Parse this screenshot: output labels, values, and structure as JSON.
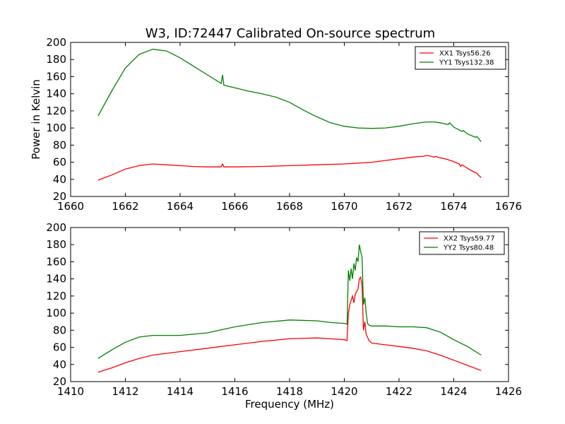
{
  "figure": {
    "title": "W3, ID:72447 Calibrated On-source spectrum",
    "ylabel": "Power in Kelvin",
    "xlabel": "Frequency (MHz)"
  },
  "chart_data": [
    {
      "type": "line",
      "title": "W3, ID:72447 Calibrated On-source spectrum",
      "xlabel": "",
      "ylabel": "Power in Kelvin",
      "xlim": [
        1660,
        1676
      ],
      "ylim": [
        20,
        200
      ],
      "xticks": [
        1660,
        1662,
        1664,
        1666,
        1668,
        1670,
        1672,
        1674,
        1676
      ],
      "yticks": [
        20,
        40,
        60,
        80,
        100,
        120,
        140,
        160,
        180,
        200
      ],
      "grid": false,
      "legend_position": "top-right",
      "series": [
        {
          "name": "XX1 Tsys56.26",
          "color": "#ff0000",
          "x": [
            1661.0,
            1661.5,
            1662.0,
            1662.5,
            1663.0,
            1663.5,
            1664.0,
            1664.5,
            1665.0,
            1665.5,
            1665.55,
            1665.6,
            1666.0,
            1667.0,
            1668.0,
            1669.0,
            1670.0,
            1671.0,
            1671.5,
            1672.0,
            1672.5,
            1672.9,
            1673.0,
            1673.3,
            1673.35,
            1673.4,
            1673.8,
            1673.85,
            1673.9,
            1674.2,
            1674.25,
            1674.3,
            1674.6,
            1674.85,
            1674.9,
            1675.0
          ],
          "y": [
            39,
            45,
            52,
            56,
            58,
            57,
            56,
            55,
            54.5,
            54.5,
            58,
            54.5,
            54.5,
            55,
            56,
            57,
            58,
            60,
            62,
            64,
            66,
            67,
            68,
            66,
            67,
            66,
            63,
            62,
            62,
            58,
            55,
            57,
            51,
            47,
            45,
            42
          ]
        },
        {
          "name": "YY1 Tsys132.38",
          "color": "#008000",
          "x": [
            1661.0,
            1661.5,
            1662.0,
            1662.5,
            1663.0,
            1663.5,
            1664.0,
            1664.5,
            1665.0,
            1665.5,
            1665.55,
            1665.6,
            1666.0,
            1666.5,
            1667.0,
            1667.5,
            1668.0,
            1668.5,
            1669.0,
            1669.5,
            1670.0,
            1670.5,
            1671.0,
            1671.5,
            1672.0,
            1672.5,
            1673.0,
            1673.3,
            1673.5,
            1673.8,
            1673.85,
            1674.0,
            1674.3,
            1674.35,
            1674.5,
            1674.8,
            1674.85,
            1675.0
          ],
          "y": [
            114,
            143,
            170,
            186,
            192,
            190,
            182,
            172,
            162,
            152,
            162,
            150,
            147,
            143,
            140,
            136,
            130,
            121,
            113,
            106,
            102,
            100,
            99.5,
            100,
            102,
            105,
            107,
            107,
            106,
            104,
            106,
            101,
            96,
            97,
            93,
            89,
            90,
            84
          ]
        }
      ]
    },
    {
      "type": "line",
      "title": "",
      "xlabel": "Frequency (MHz)",
      "ylabel": "",
      "xlim": [
        1410,
        1426
      ],
      "ylim": [
        20,
        200
      ],
      "xticks": [
        1410,
        1412,
        1414,
        1416,
        1418,
        1420,
        1422,
        1424,
        1426
      ],
      "yticks": [
        20,
        40,
        60,
        80,
        100,
        120,
        140,
        160,
        180,
        200
      ],
      "grid": false,
      "legend_position": "top-right",
      "series": [
        {
          "name": "XX2 Tsys59.77",
          "color": "#ff0000",
          "x": [
            1411.0,
            1411.5,
            1412.0,
            1412.5,
            1413.0,
            1414.0,
            1415.0,
            1416.0,
            1417.0,
            1418.0,
            1419.0,
            1419.5,
            1420.0,
            1420.1,
            1420.15,
            1420.2,
            1420.3,
            1420.35,
            1420.4,
            1420.5,
            1420.55,
            1420.6,
            1420.65,
            1420.7,
            1420.75,
            1420.8,
            1420.85,
            1420.9,
            1421.0,
            1421.5,
            1422.0,
            1422.5,
            1423.0,
            1423.5,
            1424.0,
            1424.5,
            1425.0
          ],
          "y": [
            31,
            36,
            42,
            47,
            51,
            55,
            59,
            63,
            67,
            70,
            71,
            70,
            69,
            68,
            100,
            110,
            120,
            112,
            122,
            128,
            140,
            142,
            132,
            80,
            90,
            75,
            72,
            68,
            65,
            63,
            61,
            59,
            56,
            51,
            45,
            39,
            33
          ]
        },
        {
          "name": "YY2 Tsys80.48",
          "color": "#008000",
          "x": [
            1411.0,
            1411.5,
            1412.0,
            1412.5,
            1413.0,
            1414.0,
            1415.0,
            1416.0,
            1417.0,
            1418.0,
            1419.0,
            1419.5,
            1420.0,
            1420.1,
            1420.15,
            1420.2,
            1420.25,
            1420.3,
            1420.35,
            1420.4,
            1420.45,
            1420.5,
            1420.55,
            1420.6,
            1420.65,
            1420.7,
            1420.75,
            1420.8,
            1420.85,
            1420.9,
            1421.0,
            1421.5,
            1422.0,
            1422.5,
            1423.0,
            1423.5,
            1424.0,
            1424.5,
            1425.0
          ],
          "y": [
            47,
            57,
            66,
            72,
            74,
            74,
            77,
            84,
            89,
            92,
            91,
            89,
            88,
            87,
            150,
            138,
            152,
            140,
            158,
            150,
            165,
            160,
            180,
            172,
            165,
            110,
            118,
            100,
            88,
            86,
            85,
            85,
            84,
            84,
            83,
            78,
            69,
            61,
            51
          ]
        }
      ]
    }
  ]
}
